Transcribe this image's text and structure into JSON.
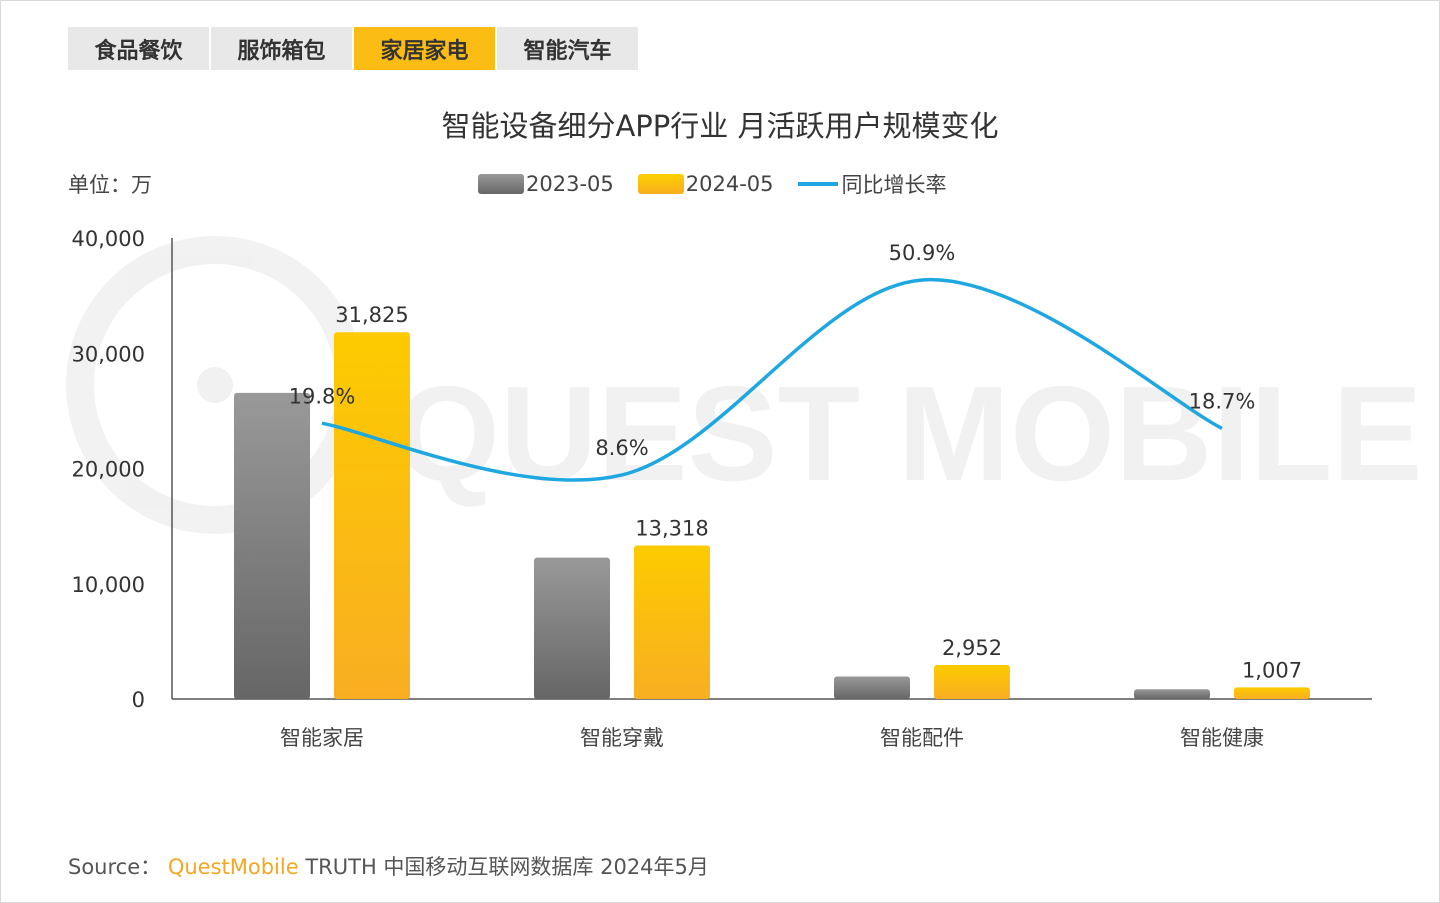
{
  "tabs": [
    {
      "label": "食品餐饮",
      "active": false
    },
    {
      "label": "服饰箱包",
      "active": false
    },
    {
      "label": "家居家电",
      "active": true
    },
    {
      "label": "智能汽车",
      "active": false
    }
  ],
  "watermark": "QUEST MOBILE",
  "unit": "单位：万",
  "source": {
    "prefix": "Source：",
    "brand": "QuestMobile",
    "rest": "TRUTH 中国移动互联网数据库 2024年5月"
  },
  "colors": {
    "gray": "#888888",
    "yellow": "#fbbf10",
    "line": "#1ea7e1",
    "tab_active": "#fbbd14"
  },
  "chart_data": {
    "type": "bar",
    "title": "智能设备细分APP行业 月活跃用户规模变化",
    "categories": [
      "智能家居",
      "智能穿戴",
      "智能配件",
      "智能健康"
    ],
    "series": [
      {
        "name": "2023-05",
        "type": "bar",
        "values": [
          26565,
          12263,
          1956,
          848
        ]
      },
      {
        "name": "2024-05",
        "type": "bar",
        "values": [
          31825,
          13318,
          2952,
          1007
        ],
        "labels": [
          "31,825",
          "13,318",
          "2,952",
          "1,007"
        ]
      },
      {
        "name": "同比增长率",
        "type": "line",
        "axis": "secondary",
        "values": [
          19.8,
          8.6,
          50.9,
          18.7
        ],
        "labels": [
          "19.8%",
          "8.6%",
          "50.9%",
          "18.7%"
        ]
      }
    ],
    "ylim": [
      0,
      40000
    ],
    "yticks": [
      "0",
      "10,000",
      "20,000",
      "30,000",
      "40,000"
    ],
    "y2lim": [
      -40,
      60
    ],
    "legend": "top",
    "grid": false
  }
}
